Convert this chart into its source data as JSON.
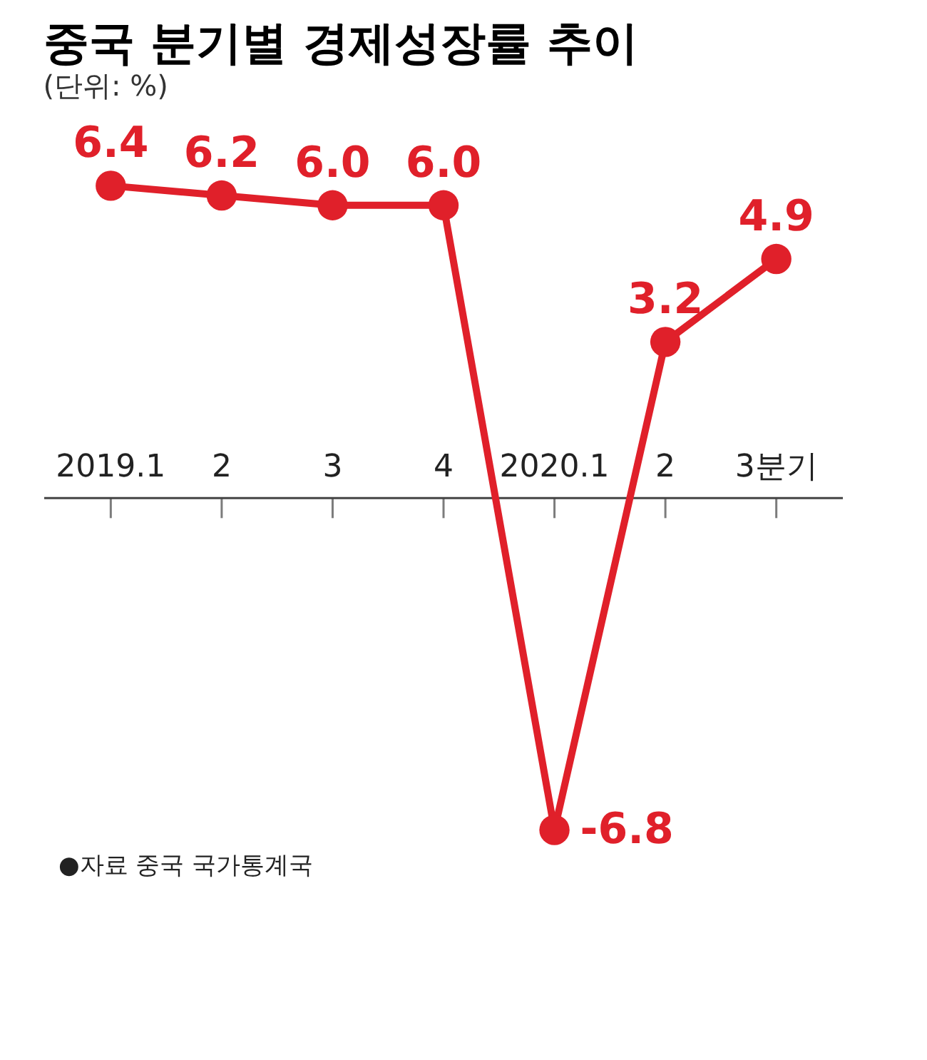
{
  "chart_data": {
    "type": "line",
    "title": "중국 분기별 경제성장률 추이",
    "subtitle": "(단위: %)",
    "categories": [
      "2019.1",
      "2",
      "3",
      "4",
      "2020.1",
      "2",
      "3분기"
    ],
    "series": [
      {
        "color": "#e0202a",
        "values": [
          6.4,
          6.2,
          6.0,
          6.0,
          -6.8,
          3.2,
          4.9
        ],
        "value_labels": [
          "6.4",
          "6.2",
          "6.0",
          "6.0",
          "-6.8",
          "3.2",
          "4.9"
        ]
      }
    ],
    "marker": "circle",
    "line_style": "solid",
    "annotations": [
      "●자료 중국 국가통계국"
    ]
  }
}
